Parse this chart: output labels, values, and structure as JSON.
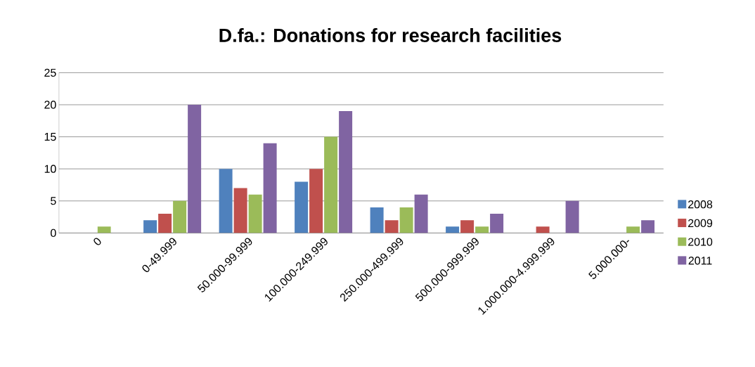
{
  "chart_data": {
    "type": "bar",
    "title": "D.fa.: Donations for research facilities",
    "categories": [
      "0",
      "0-49.999",
      "50.000-99.999",
      "100.000-249.999",
      "250.000-499.999",
      "500.000-999.999",
      "1.000.000-4.999.999",
      "5.000.000-"
    ],
    "series": [
      {
        "name": "2008",
        "color": "#4f81bd",
        "values": [
          0,
          2,
          10,
          8,
          4,
          1,
          0,
          0
        ]
      },
      {
        "name": "2009",
        "color": "#c0504d",
        "values": [
          0,
          3,
          7,
          10,
          2,
          2,
          1,
          0
        ]
      },
      {
        "name": "2010",
        "color": "#9bbb59",
        "values": [
          1,
          5,
          6,
          15,
          4,
          1,
          0,
          1
        ]
      },
      {
        "name": "2011",
        "color": "#8064a2",
        "values": [
          0,
          20,
          14,
          19,
          6,
          3,
          5,
          2
        ]
      }
    ],
    "ylim": [
      0,
      25
    ],
    "yticks": [
      0,
      5,
      10,
      15,
      20,
      25
    ],
    "grid": "y",
    "legend": "right"
  }
}
